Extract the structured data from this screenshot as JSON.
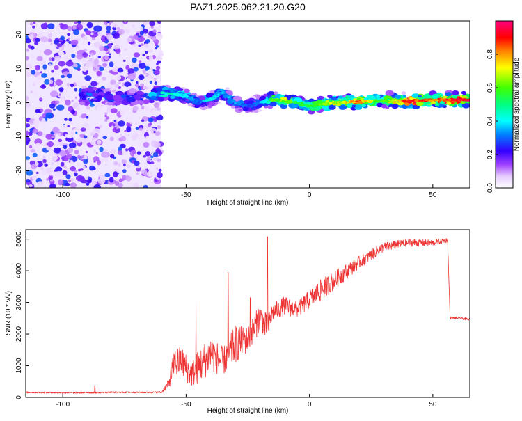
{
  "title": "PAZ1.2025.062.21.20.G20",
  "chart_data": [
    {
      "type": "heatmap",
      "xlabel": "Height of straight line (km)",
      "ylabel": "Frequency (Hz)",
      "xlim": [
        -115,
        65
      ],
      "ylim": [
        -25,
        24
      ],
      "xticks": [
        -100,
        -50,
        0,
        50
      ],
      "yticks": [
        -20,
        -10,
        0,
        10,
        20
      ],
      "colorbar": {
        "label": "Normalized spectral amplitude",
        "range": [
          0,
          1
        ],
        "ticks": [
          0.0,
          0.2,
          0.4,
          0.6,
          0.8
        ]
      },
      "noise_region": {
        "x_from": -115,
        "x_to": -60,
        "y_from": -25,
        "y_to": 24
      },
      "ridge": {
        "x": [
          -93,
          -85,
          -75,
          -65,
          -60,
          -55,
          -50,
          -45,
          -40,
          -35,
          -30,
          -25,
          -20,
          -15,
          -10,
          -5,
          0,
          5,
          10,
          20,
          30,
          40,
          50,
          60,
          65
        ],
        "freq": [
          2,
          2,
          1.5,
          2,
          3,
          2.5,
          2,
          0,
          1,
          3,
          0,
          -1,
          0,
          1,
          0.5,
          0,
          -1,
          -0.5,
          0,
          0.3,
          0.6,
          0.5,
          0.8,
          0.8,
          0.8
        ],
        "amplitude": [
          0.35,
          0.3,
          0.25,
          0.3,
          0.45,
          0.45,
          0.4,
          0.3,
          0.45,
          0.35,
          0.35,
          0.3,
          0.35,
          0.6,
          0.7,
          0.6,
          0.55,
          0.65,
          0.7,
          0.85,
          0.6,
          0.95,
          0.9,
          0.95,
          0.95
        ]
      }
    },
    {
      "type": "line",
      "xlabel": "Height of straight line (km)",
      "ylabel": "SNR (10 * v/v)",
      "xlim": [
        -115,
        65
      ],
      "ylim": [
        0,
        5300
      ],
      "xticks": [
        -100,
        -50,
        0,
        50
      ],
      "yticks": [
        0,
        1000,
        2000,
        3000,
        4000,
        5000
      ],
      "color": "#ee3333",
      "envelope": {
        "x": [
          -115,
          -100,
          -87,
          -80,
          -65,
          -60,
          -57,
          -55,
          -52,
          -48,
          -45,
          -40,
          -35,
          -30,
          -25,
          -20,
          -17,
          -15,
          -10,
          -5,
          0,
          5,
          10,
          20,
          30,
          40,
          50,
          56,
          57,
          60,
          65
        ],
        "base": [
          150,
          140,
          140,
          150,
          150,
          150,
          400,
          900,
          1000,
          600,
          800,
          1200,
          1000,
          1500,
          1700,
          2400,
          2000,
          2600,
          2800,
          2700,
          3000,
          3300,
          3600,
          4200,
          4700,
          4850,
          4850,
          4950,
          2500,
          2500,
          2450
        ],
        "spread": [
          50,
          50,
          50,
          50,
          50,
          60,
          300,
          1000,
          1000,
          800,
          1100,
          1200,
          900,
          1200,
          800,
          900,
          900,
          600,
          600,
          500,
          600,
          700,
          600,
          400,
          300,
          250,
          200,
          150,
          80,
          80,
          80
        ]
      },
      "spikes": [
        {
          "x": -87,
          "y": 380
        },
        {
          "x": -46,
          "y": 3050
        },
        {
          "x": -33,
          "y": 3950
        },
        {
          "x": -17,
          "y": 5080
        },
        {
          "x": -24,
          "y": 3150
        }
      ]
    }
  ]
}
